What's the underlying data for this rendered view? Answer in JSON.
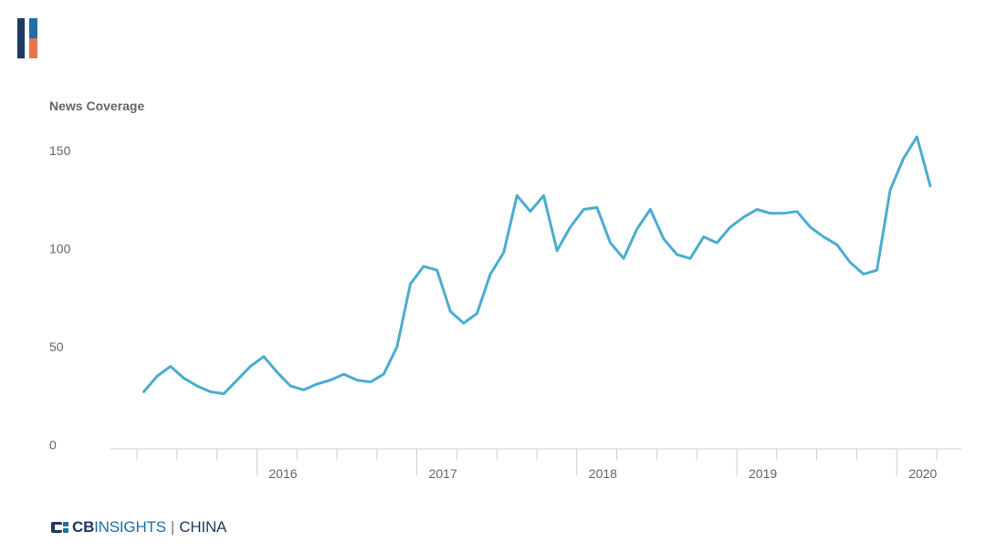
{
  "colors": {
    "line": "#4bacd0",
    "axis": "#cccccc",
    "text": "#666666",
    "logo_navy": "#1d3a63",
    "logo_blue": "#1e6ea8",
    "logo_orange": "#e8764a"
  },
  "footer": {
    "brand_cb": "CB",
    "brand_insights": "INSIGHTS",
    "brand_separator": "|",
    "brand_region": "CHINA",
    "brand_icon": "cb-insights-logo-icon"
  },
  "logo": {
    "icon": "bar-logo-icon"
  },
  "chart_data": {
    "type": "line",
    "ylabel": "News Coverage",
    "title": "",
    "xlabel": "",
    "ylim": [
      0,
      160
    ],
    "yticks": [
      0,
      50,
      100,
      150
    ],
    "year_labels": [
      "2016",
      "2017",
      "2018",
      "2019",
      "2020"
    ],
    "grid": false,
    "series": [
      {
        "values": [
          27,
          35,
          40,
          34,
          30,
          27,
          26,
          33,
          40,
          45,
          37,
          30,
          28,
          31,
          33,
          36,
          33,
          32,
          36,
          50,
          82,
          91,
          89,
          68,
          62,
          67,
          87,
          98,
          127,
          119,
          127,
          99,
          111,
          120,
          121,
          103,
          95,
          110,
          120,
          105,
          97,
          95,
          106,
          103,
          111,
          116,
          120,
          118,
          118,
          119,
          111,
          106,
          102,
          93,
          87,
          89,
          130,
          146,
          157,
          132
        ]
      }
    ]
  }
}
